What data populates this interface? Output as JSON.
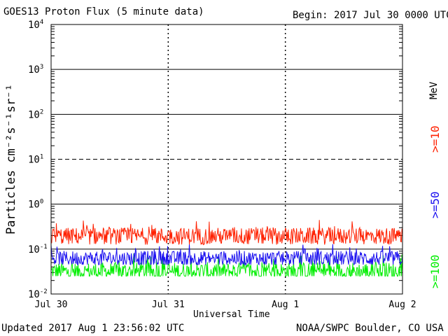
{
  "header": {
    "title": "GOES13 Proton Flux (5 minute data)",
    "begin": "Begin: 2017 Jul 30 0000 UTC"
  },
  "footer": {
    "updated": "Updated 2017 Aug  1 23:56:02 UTC",
    "credit": "NOAA/SWPC Boulder, CO USA"
  },
  "chart_data": {
    "type": "line",
    "title": "GOES13 Proton Flux (5 minute data)",
    "xlabel": "Universal Time",
    "ylabel": "Particles cm⁻²s⁻¹sr⁻¹",
    "yscale": "log",
    "ylim": [
      0.01,
      10000
    ],
    "xlim": [
      "2017-07-30",
      "2017-08-02"
    ],
    "x_ticks": [
      "Jul 30",
      "Jul 31",
      "Aug 1",
      "Aug 2"
    ],
    "y_ticks": [
      {
        "base": "10",
        "exp": "-2"
      },
      {
        "base": "10",
        "exp": "-1"
      },
      {
        "base": "10",
        "exp": "0"
      },
      {
        "base": "10",
        "exp": "1"
      },
      {
        "base": "10",
        "exp": "2"
      },
      {
        "base": "10",
        "exp": "3"
      },
      {
        "base": "10",
        "exp": "4"
      }
    ],
    "unit_label": "MeV",
    "series": [
      {
        "name": ">=10",
        "color": "#ff2000",
        "baseline": 0.17,
        "range": [
          0.12,
          0.45
        ]
      },
      {
        "name": ">=50",
        "color": "#1a0ff0",
        "baseline": 0.055,
        "range": [
          0.045,
          0.13
        ]
      },
      {
        "name": ">=100",
        "color": "#00ee00",
        "baseline": 0.027,
        "range": [
          0.025,
          0.08
        ]
      }
    ],
    "grid": true
  }
}
